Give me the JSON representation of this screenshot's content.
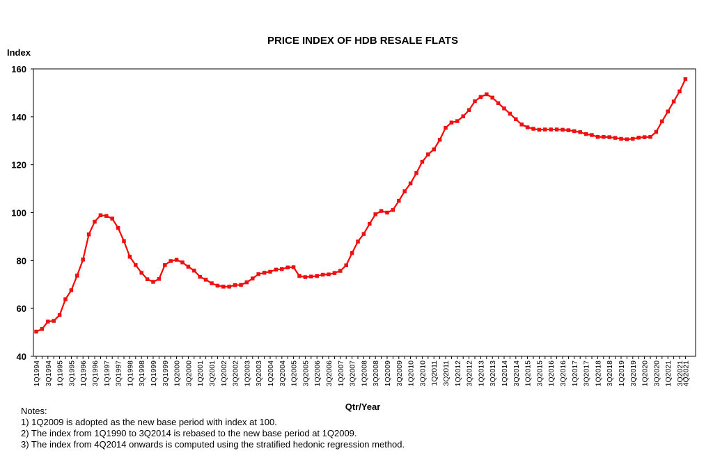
{
  "chart_data": {
    "type": "line",
    "title": "PRICE INDEX OF HDB RESALE FLATS",
    "xlabel": "Qtr/Year",
    "ylabel": "Index",
    "ylim": [
      40,
      160
    ],
    "yticks": [
      40,
      60,
      80,
      100,
      120,
      140,
      160
    ],
    "grid": false,
    "legend": "none",
    "line_color": "#ff0000",
    "marker_color": "#ee1111",
    "tick_labels": [
      "1Q1994",
      "3Q1994",
      "1Q1995",
      "3Q1995",
      "1Q1996",
      "3Q1996",
      "1Q1997",
      "3Q1997",
      "1Q1998",
      "3Q1998",
      "1Q1999",
      "3Q1999",
      "1Q2000",
      "3Q2000",
      "1Q2001",
      "3Q2001",
      "1Q2002",
      "3Q2002",
      "1Q2003",
      "3Q2003",
      "1Q2004",
      "3Q2004",
      "1Q2005",
      "3Q2005",
      "1Q2006",
      "3Q2006",
      "1Q2007",
      "3Q2007",
      "1Q2008",
      "3Q2008",
      "1Q2009",
      "3Q2009",
      "1Q2010",
      "3Q2010",
      "1Q2011",
      "3Q2011",
      "1Q2012",
      "3Q2012",
      "1Q2013",
      "3Q2013",
      "1Q2014",
      "3Q2014",
      "1Q2015",
      "3Q2015",
      "1Q2016",
      "3Q2016",
      "1Q2017",
      "3Q2017",
      "1Q2018",
      "3Q2018",
      "1Q2019",
      "3Q2019",
      "1Q2020",
      "3Q2020",
      "1Q2021",
      "3Q2021",
      "4Q2021"
    ],
    "x": [
      "1Q1994",
      "2Q1994",
      "3Q1994",
      "4Q1994",
      "1Q1995",
      "2Q1995",
      "3Q1995",
      "4Q1995",
      "1Q1996",
      "2Q1996",
      "3Q1996",
      "4Q1996",
      "1Q1997",
      "2Q1997",
      "3Q1997",
      "4Q1997",
      "1Q1998",
      "2Q1998",
      "3Q1998",
      "4Q1998",
      "1Q1999",
      "2Q1999",
      "3Q1999",
      "4Q1999",
      "1Q2000",
      "2Q2000",
      "3Q2000",
      "4Q2000",
      "1Q2001",
      "2Q2001",
      "3Q2001",
      "4Q2001",
      "1Q2002",
      "2Q2002",
      "3Q2002",
      "4Q2002",
      "1Q2003",
      "2Q2003",
      "3Q2003",
      "4Q2003",
      "1Q2004",
      "2Q2004",
      "3Q2004",
      "4Q2004",
      "1Q2005",
      "2Q2005",
      "3Q2005",
      "4Q2005",
      "1Q2006",
      "2Q2006",
      "3Q2006",
      "4Q2006",
      "1Q2007",
      "2Q2007",
      "3Q2007",
      "4Q2007",
      "1Q2008",
      "2Q2008",
      "3Q2008",
      "4Q2008",
      "1Q2009",
      "2Q2009",
      "3Q2009",
      "4Q2009",
      "1Q2010",
      "2Q2010",
      "3Q2010",
      "4Q2010",
      "1Q2011",
      "2Q2011",
      "3Q2011",
      "4Q2011",
      "1Q2012",
      "2Q2012",
      "3Q2012",
      "4Q2012",
      "1Q2013",
      "2Q2013",
      "3Q2013",
      "4Q2013",
      "1Q2014",
      "2Q2014",
      "3Q2014",
      "4Q2014",
      "1Q2015",
      "2Q2015",
      "3Q2015",
      "4Q2015",
      "1Q2016",
      "2Q2016",
      "3Q2016",
      "4Q2016",
      "1Q2017",
      "2Q2017",
      "3Q2017",
      "4Q2017",
      "1Q2018",
      "2Q2018",
      "3Q2018",
      "4Q2018",
      "1Q2019",
      "2Q2019",
      "3Q2019",
      "4Q2019",
      "1Q2020",
      "2Q2020",
      "3Q2020",
      "4Q2020",
      "1Q2021",
      "2Q2021",
      "3Q2021",
      "4Q2021"
    ],
    "series": [
      {
        "values": [
          50.3,
          51.4,
          54.5,
          54.8,
          57.2,
          63.8,
          67.6,
          73.7,
          80.4,
          90.9,
          96.2,
          98.9,
          98.6,
          97.5,
          93.6,
          88.1,
          81.6,
          78.1,
          74.9,
          72.2,
          71.1,
          72.3,
          78.1,
          79.8,
          80.3,
          79.2,
          77.4,
          75.8,
          73.2,
          72.0,
          70.5,
          69.5,
          69.1,
          69.1,
          69.7,
          69.8,
          70.9,
          72.5,
          74.3,
          74.9,
          75.3,
          76.2,
          76.4,
          77.1,
          77.2,
          73.5,
          73.1,
          73.3,
          73.5,
          74.1,
          74.2,
          74.8,
          75.7,
          78.0,
          83.1,
          87.9,
          91.1,
          95.3,
          99.3,
          100.7,
          100.0,
          101.1,
          104.9,
          108.9,
          112.2,
          116.5,
          121.2,
          124.3,
          126.4,
          130.4,
          135.4,
          137.6,
          138.2,
          140.2,
          142.8,
          146.5,
          148.3,
          149.4,
          148.0,
          145.7,
          143.5,
          141.3,
          139.0,
          136.8,
          135.6,
          135.0,
          134.6,
          134.7,
          134.7,
          134.7,
          134.6,
          134.4,
          134.0,
          133.6,
          132.8,
          132.4,
          131.6,
          131.6,
          131.5,
          131.2,
          130.8,
          130.6,
          130.8,
          131.3,
          131.5,
          131.6,
          133.7,
          138.1,
          142.2,
          146.4,
          150.6,
          155.7
        ]
      }
    ]
  },
  "notes": {
    "heading": "Notes:",
    "items": [
      "1) 1Q2009 is adopted as the new base period with index at 100.",
      "2) The index from 1Q1990 to 3Q2014 is rebased to the new base period at 1Q2009.",
      "3) The index from 4Q2014 onwards is computed using the stratified hedonic regression method."
    ]
  }
}
